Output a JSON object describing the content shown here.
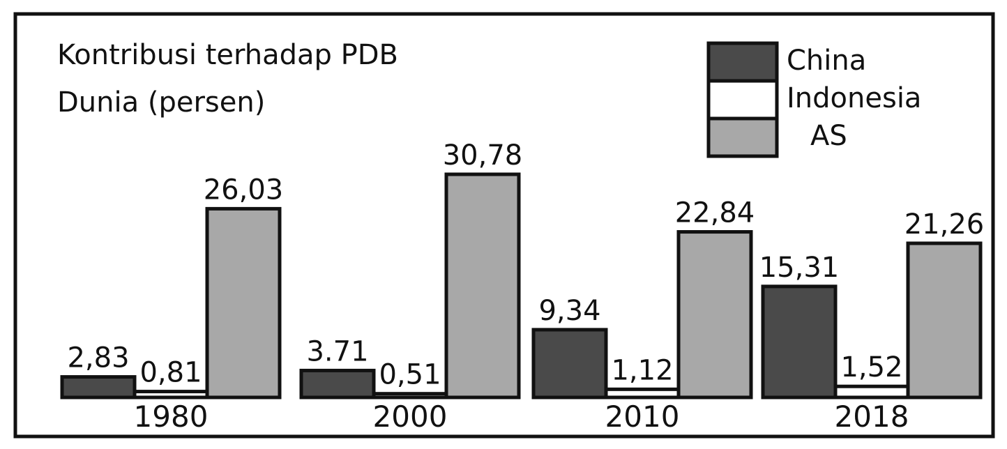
{
  "chart_data": {
    "type": "bar",
    "title": "Kontribusi terhadap PDB",
    "subtitle": "Dunia (persen)",
    "categories": [
      "1980",
      "2000",
      "2010",
      "2018"
    ],
    "series": [
      {
        "name": "China",
        "color": "#4a4a4a",
        "values": [
          2.83,
          3.71,
          9.34,
          15.31
        ],
        "labels": [
          "2,83",
          "3.71",
          "9,34",
          "15,31"
        ]
      },
      {
        "name": "Indonesia",
        "color": "#ffffff",
        "values": [
          0.81,
          0.51,
          1.12,
          1.52
        ],
        "labels": [
          "0,81",
          "0,51",
          "1,12",
          "1,52"
        ]
      },
      {
        "name": "AS",
        "color": "#a8a8a8",
        "values": [
          26.03,
          30.78,
          22.84,
          21.26
        ],
        "labels": [
          "26,03",
          "30,78",
          "22,84",
          "21,26"
        ]
      }
    ],
    "legend_position": "top-right",
    "grid": false,
    "ylim": [
      0,
      30.78
    ]
  }
}
